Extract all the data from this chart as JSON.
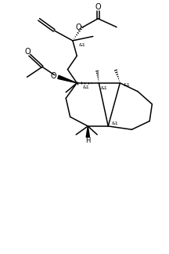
{
  "background": "#ffffff",
  "line_color": "#000000",
  "line_width": 1.1,
  "font_size": 6.0,
  "fig_width": 2.16,
  "fig_height": 3.24,
  "dpi": 100,
  "xlim": [
    0,
    10
  ],
  "ylim": [
    0,
    15
  ]
}
